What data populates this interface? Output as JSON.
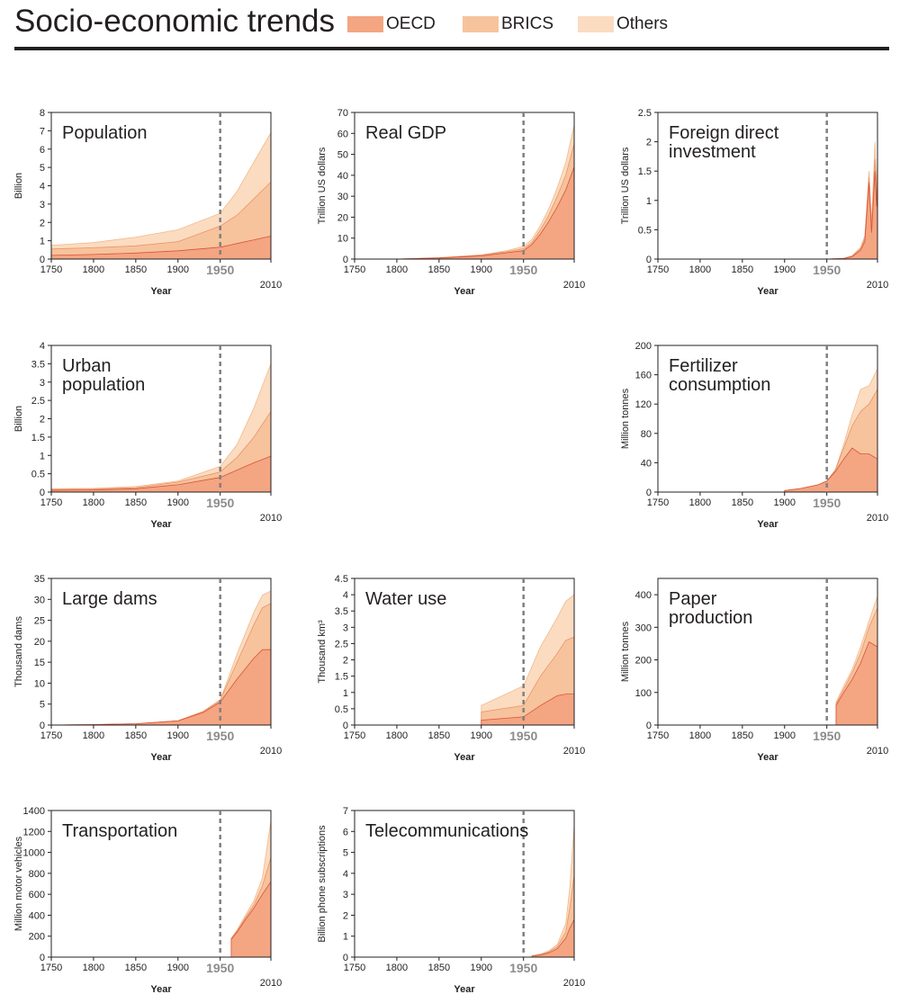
{
  "page": {
    "title": "Socio-economic trends",
    "legend": [
      {
        "label": "OECD",
        "color": "#f4a582"
      },
      {
        "label": "BRICS",
        "color": "#f7c39c"
      },
      {
        "label": "Others",
        "color": "#fbdcc1"
      }
    ]
  },
  "colors": {
    "oecd_fill": "#f4a582",
    "brics_fill": "#f7c39c",
    "others_fill": "#fbdcc1",
    "oecd_line": "#d9533a",
    "brics_line": "#eb9368",
    "others_line": "#f3b98a",
    "axis": "#231f20",
    "dashed": "#808080",
    "highlight_label": "#8c8c8c"
  },
  "chart_data": [
    {
      "id": "population",
      "type": "area",
      "title": [
        "Population"
      ],
      "ylabel": "Billion",
      "xlabel": "Year",
      "ylim": [
        0,
        8
      ],
      "yticks": [
        "0",
        "1",
        "2",
        "3",
        "4",
        "5",
        "6",
        "7",
        "8"
      ],
      "xticks": [
        "1750",
        "1800",
        "1850",
        "1900",
        "1950"
      ],
      "xend_label": "2010",
      "highlight_year": "1950",
      "x": [
        1750,
        1800,
        1850,
        1900,
        1950,
        1970,
        1990,
        2010
      ],
      "series": [
        {
          "name": "OECD",
          "values": [
            0.2,
            0.25,
            0.33,
            0.45,
            0.65,
            0.85,
            1.05,
            1.25
          ]
        },
        {
          "name": "BRICS",
          "values": [
            0.55,
            0.62,
            0.72,
            0.95,
            1.8,
            2.4,
            3.3,
            4.2
          ]
        },
        {
          "name": "Others",
          "values": [
            0.75,
            0.9,
            1.2,
            1.6,
            2.5,
            3.7,
            5.3,
            6.9
          ]
        }
      ]
    },
    {
      "id": "gdp",
      "type": "area",
      "title": [
        "Real GDP"
      ],
      "ylabel": "Trillion US dollars",
      "xlabel": "Year",
      "ylim": [
        0,
        70
      ],
      "yticks": [
        "0",
        "10",
        "20",
        "30",
        "40",
        "50",
        "60",
        "70"
      ],
      "xticks": [
        "1750",
        "1800",
        "1850",
        "1900",
        "1950"
      ],
      "xend_label": "2010",
      "highlight_year": "1950",
      "x": [
        1750,
        1800,
        1850,
        1900,
        1930,
        1950,
        1960,
        1970,
        1980,
        1990,
        2000,
        2010
      ],
      "series": [
        {
          "name": "OECD",
          "values": [
            0,
            0,
            0.5,
            1.5,
            3,
            4,
            7,
            12,
            18,
            25,
            33,
            44
          ]
        },
        {
          "name": "BRICS",
          "values": [
            0,
            0,
            0.6,
            1.8,
            3.5,
            5,
            8,
            14,
            21,
            30,
            40,
            55
          ]
        },
        {
          "name": "Others",
          "values": [
            0,
            0,
            0.7,
            2,
            4,
            6,
            9.5,
            16,
            24,
            34,
            46,
            64
          ]
        }
      ]
    },
    {
      "id": "fdi",
      "type": "area",
      "title": [
        "Foreign direct",
        "investment"
      ],
      "ylabel": "Trillion US dollars",
      "xlabel": "Year",
      "ylim": [
        0,
        2.5
      ],
      "yticks": [
        "0",
        "0.5",
        "1",
        "1.5",
        "2",
        "2.5"
      ],
      "xticks": [
        "1750",
        "1800",
        "1850",
        "1900",
        "1950"
      ],
      "xend_label": "2010",
      "highlight_year": "1950",
      "x": [
        1750,
        1950,
        1970,
        1980,
        1990,
        1995,
        2000,
        2003,
        2007,
        2009,
        2010
      ],
      "series": [
        {
          "name": "OECD",
          "values": [
            0,
            0,
            0.01,
            0.04,
            0.15,
            0.3,
            1.3,
            0.45,
            1.5,
            0.9,
            1.3
          ]
        },
        {
          "name": "BRICS",
          "values": [
            0,
            0,
            0.01,
            0.05,
            0.18,
            0.35,
            1.4,
            0.55,
            1.7,
            1.05,
            1.5
          ]
        },
        {
          "name": "Others",
          "values": [
            0,
            0,
            0.01,
            0.06,
            0.2,
            0.4,
            1.5,
            0.6,
            2.0,
            1.2,
            1.7
          ]
        }
      ]
    },
    {
      "id": "urban",
      "type": "area",
      "title": [
        "Urban",
        "population"
      ],
      "ylabel": "Billion",
      "xlabel": "Year",
      "ylim": [
        0,
        4
      ],
      "yticks": [
        "0",
        "0.5",
        "1",
        "1.5",
        "2",
        "2.5",
        "3",
        "3.5",
        "4"
      ],
      "xticks": [
        "1750",
        "1800",
        "1850",
        "1900",
        "1950"
      ],
      "xend_label": "2010",
      "highlight_year": "1950",
      "x": [
        1750,
        1800,
        1850,
        1900,
        1950,
        1970,
        1990,
        2010
      ],
      "series": [
        {
          "name": "OECD",
          "values": [
            0.05,
            0.06,
            0.09,
            0.2,
            0.4,
            0.6,
            0.8,
            0.98
          ]
        },
        {
          "name": "BRICS",
          "values": [
            0.07,
            0.08,
            0.12,
            0.27,
            0.55,
            0.95,
            1.5,
            2.2
          ]
        },
        {
          "name": "Others",
          "values": [
            0.09,
            0.1,
            0.15,
            0.3,
            0.7,
            1.3,
            2.3,
            3.5
          ]
        }
      ]
    },
    {
      "id": "fertilizer",
      "type": "area",
      "title": [
        "Fertilizer",
        "consumption"
      ],
      "ylabel": "Million tonnes",
      "xlabel": "Year",
      "ylim": [
        0,
        200
      ],
      "yticks": [
        "0",
        "40",
        "80",
        "120",
        "160",
        "200"
      ],
      "xticks": [
        "1750",
        "1800",
        "1850",
        "1900",
        "1950"
      ],
      "xend_label": "2010",
      "highlight_year": "1950",
      "x": [
        1900,
        1920,
        1940,
        1950,
        1960,
        1970,
        1980,
        1990,
        2000,
        2010
      ],
      "series": [
        {
          "name": "OECD",
          "values": [
            2,
            5,
            10,
            15,
            28,
            45,
            60,
            52,
            52,
            45
          ]
        },
        {
          "name": "BRICS",
          "values": [
            2,
            5,
            10,
            15,
            30,
            60,
            90,
            110,
            120,
            140
          ]
        },
        {
          "name": "Others",
          "values": [
            2,
            5,
            10,
            15,
            30,
            65,
            105,
            140,
            145,
            168
          ]
        }
      ]
    },
    {
      "id": "dams",
      "type": "area",
      "title": [
        "Large dams"
      ],
      "ylabel": "Thousand dams",
      "xlabel": "Year",
      "ylim": [
        0,
        35
      ],
      "yticks": [
        "0",
        "5",
        "10",
        "15",
        "20",
        "25",
        "30",
        "35"
      ],
      "xticks": [
        "1750",
        "1800",
        "1850",
        "1900",
        "1950"
      ],
      "xend_label": "2010",
      "highlight_year": "1950",
      "x": [
        1750,
        1800,
        1850,
        1900,
        1930,
        1950,
        1970,
        1990,
        2000,
        2010
      ],
      "series": [
        {
          "name": "OECD",
          "values": [
            0,
            0.1,
            0.3,
            1,
            3,
            5.5,
            11,
            16,
            18,
            18
          ]
        },
        {
          "name": "BRICS",
          "values": [
            0,
            0.1,
            0.3,
            1,
            3.2,
            6,
            15,
            24,
            28,
            29
          ]
        },
        {
          "name": "Others",
          "values": [
            0,
            0.1,
            0.3,
            1,
            3.3,
            6,
            17,
            27,
            31,
            32
          ]
        }
      ]
    },
    {
      "id": "water",
      "type": "area",
      "title": [
        "Water use"
      ],
      "ylabel": "Thousand km³",
      "xlabel": "Year",
      "ylim": [
        0,
        4.5
      ],
      "yticks": [
        "0",
        "0.5",
        "1",
        "1.5",
        "2",
        "2.5",
        "3",
        "3.5",
        "4",
        "4.5"
      ],
      "xticks": [
        "1750",
        "1800",
        "1850",
        "1900",
        "1950"
      ],
      "xend_label": "2010",
      "highlight_year": "1950",
      "x": [
        1900,
        1950,
        1970,
        1990,
        2000,
        2010
      ],
      "series": [
        {
          "name": "OECD",
          "values": [
            0.15,
            0.25,
            0.6,
            0.9,
            0.95,
            0.95
          ]
        },
        {
          "name": "BRICS",
          "values": [
            0.4,
            0.6,
            1.5,
            2.2,
            2.6,
            2.7
          ]
        },
        {
          "name": "Others",
          "values": [
            0.6,
            1.2,
            2.4,
            3.3,
            3.8,
            4.0
          ]
        }
      ]
    },
    {
      "id": "paper",
      "type": "area",
      "title": [
        "Paper",
        "production"
      ],
      "ylabel": "Million tonnes",
      "xlabel": "Year",
      "ylim": [
        0,
        450
      ],
      "yticks": [
        "0",
        "100",
        "200",
        "300",
        "400"
      ],
      "xticks": [
        "1750",
        "1800",
        "1850",
        "1900",
        "1950"
      ],
      "xend_label": "2010",
      "highlight_year": "1950",
      "x": [
        1961,
        1970,
        1980,
        1990,
        2000,
        2010
      ],
      "series": [
        {
          "name": "OECD",
          "values": [
            60,
            100,
            140,
            190,
            255,
            240
          ]
        },
        {
          "name": "BRICS",
          "values": [
            65,
            110,
            160,
            220,
            300,
            360
          ]
        },
        {
          "name": "Others",
          "values": [
            70,
            120,
            170,
            240,
            320,
            395
          ]
        }
      ]
    },
    {
      "id": "transport",
      "type": "area",
      "title": [
        "Transportation"
      ],
      "ylabel": "Million motor vehicles",
      "xlabel": "Year",
      "ylim": [
        0,
        1400
      ],
      "yticks": [
        "0",
        "200",
        "400",
        "600",
        "800",
        "1000",
        "1200",
        "1400"
      ],
      "xticks": [
        "1750",
        "1800",
        "1850",
        "1900",
        "1950"
      ],
      "xend_label": "2010",
      "highlight_year": "1950",
      "x": [
        1963,
        1970,
        1980,
        1990,
        2000,
        2010
      ],
      "series": [
        {
          "name": "OECD",
          "values": [
            170,
            240,
            360,
            470,
            600,
            720
          ]
        },
        {
          "name": "BRICS",
          "values": [
            175,
            250,
            380,
            500,
            680,
            950
          ]
        },
        {
          "name": "Others",
          "values": [
            180,
            260,
            400,
            540,
            760,
            1300
          ]
        }
      ]
    },
    {
      "id": "telecom",
      "type": "area",
      "title": [
        "Telecommunications"
      ],
      "ylabel": "Billion phone subscriptions",
      "xlabel": "Year",
      "ylim": [
        0,
        7
      ],
      "yticks": [
        "0",
        "1",
        "2",
        "3",
        "4",
        "5",
        "6",
        "7"
      ],
      "xticks": [
        "1750",
        "1800",
        "1850",
        "1900",
        "1950"
      ],
      "xend_label": "2010",
      "highlight_year": "1950",
      "x": [
        1960,
        1970,
        1980,
        1990,
        2000,
        2005,
        2010
      ],
      "series": [
        {
          "name": "OECD",
          "values": [
            0.05,
            0.1,
            0.2,
            0.4,
            0.9,
            1.4,
            1.8
          ]
        },
        {
          "name": "BRICS",
          "values": [
            0.06,
            0.12,
            0.25,
            0.5,
            1.2,
            2.4,
            3.9
          ]
        },
        {
          "name": "Others",
          "values": [
            0.07,
            0.15,
            0.3,
            0.6,
            1.6,
            3.4,
            6.3
          ]
        }
      ]
    }
  ]
}
